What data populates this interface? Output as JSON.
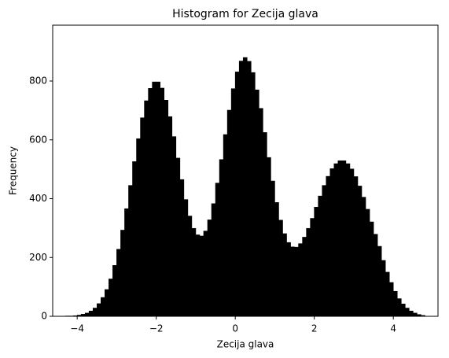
{
  "chart_data": {
    "type": "histogram",
    "title": "Histogram for Zecija glava",
    "xlabel": "Zecija glava",
    "ylabel": "Frequency",
    "color": "#000000",
    "bins": [
      -4.3,
      -4.2,
      -4.1,
      -4,
      -3.9,
      -3.8,
      -3.7,
      -3.6,
      -3.5,
      -3.4,
      -3.3,
      -3.2,
      -3.1,
      -3,
      -2.9,
      -2.8,
      -2.7,
      -2.6,
      -2.5,
      -2.4,
      -2.3,
      -2.2,
      -2.1,
      -2,
      -1.9,
      -1.8,
      -1.7,
      -1.6,
      -1.5,
      -1.4,
      -1.3,
      -1.2,
      -1.1,
      -1,
      -0.9,
      -0.8,
      -0.7,
      -0.6,
      -0.5,
      -0.4,
      -0.3,
      -0.2,
      -0.1,
      0,
      0.1,
      0.2,
      0.3,
      0.4,
      0.5,
      0.6,
      0.7,
      0.8,
      0.9,
      1,
      1.1,
      1.2,
      1.3,
      1.4,
      1.5,
      1.6,
      1.7,
      1.8,
      1.9,
      2,
      2.1,
      2.2,
      2.3,
      2.4,
      2.5,
      2.6,
      2.7,
      2.8,
      2.9,
      3,
      3.1,
      3.2,
      3.3,
      3.4,
      3.5,
      3.6,
      3.7,
      3.8,
      3.9,
      4,
      4.1,
      4.2,
      4.3,
      4.4,
      4.5,
      4.6,
      4.7,
      4.8
    ],
    "counts": [
      1,
      1,
      2,
      4,
      7,
      11,
      18,
      28,
      43,
      64,
      91,
      127,
      173,
      228,
      293,
      366,
      445,
      526,
      604,
      675,
      733,
      775,
      797,
      797,
      776,
      735,
      679,
      611,
      538,
      465,
      397,
      341,
      299,
      277,
      273,
      290,
      328,
      383,
      453,
      533,
      618,
      701,
      774,
      831,
      868,
      880,
      867,
      829,
      770,
      707,
      625,
      540,
      460,
      387,
      327,
      281,
      251,
      236,
      235,
      247,
      269,
      299,
      333,
      371,
      409,
      445,
      476,
      502,
      519,
      529,
      529,
      519,
      501,
      475,
      443,
      405,
      364,
      321,
      279,
      238,
      190,
      150,
      115,
      85,
      60,
      42,
      28,
      18,
      11,
      6,
      3
    ],
    "xlim": [
      -4.62,
      5.13
    ],
    "ylim": [
      0,
      990
    ],
    "xticks": [
      {
        "value": -4,
        "label": "−4"
      },
      {
        "value": -2,
        "label": "−2"
      },
      0,
      2,
      4
    ],
    "yticks": [
      0,
      200,
      400,
      600,
      800
    ]
  }
}
